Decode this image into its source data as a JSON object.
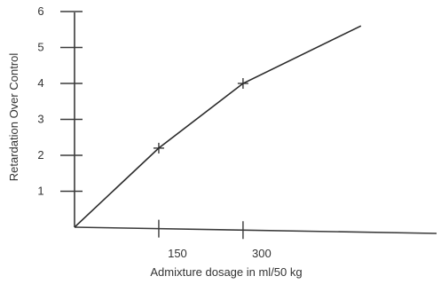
{
  "chart_data": {
    "type": "line",
    "xlabel": "Admixture dosage in ml/50 kg",
    "ylabel": "Retardation Over Control",
    "xlim": [
      0,
      600
    ],
    "ylim": [
      0,
      6
    ],
    "x_ticks": [
      150,
      300
    ],
    "y_ticks": [
      1,
      2,
      3,
      4,
      5,
      6
    ],
    "grid": false,
    "legend": "none",
    "series": [
      {
        "x": [
          0,
          150,
          300,
          510
        ],
        "y": [
          0,
          2.2,
          4.0,
          5.6
        ],
        "markers_at": [
          150,
          300
        ]
      }
    ]
  }
}
